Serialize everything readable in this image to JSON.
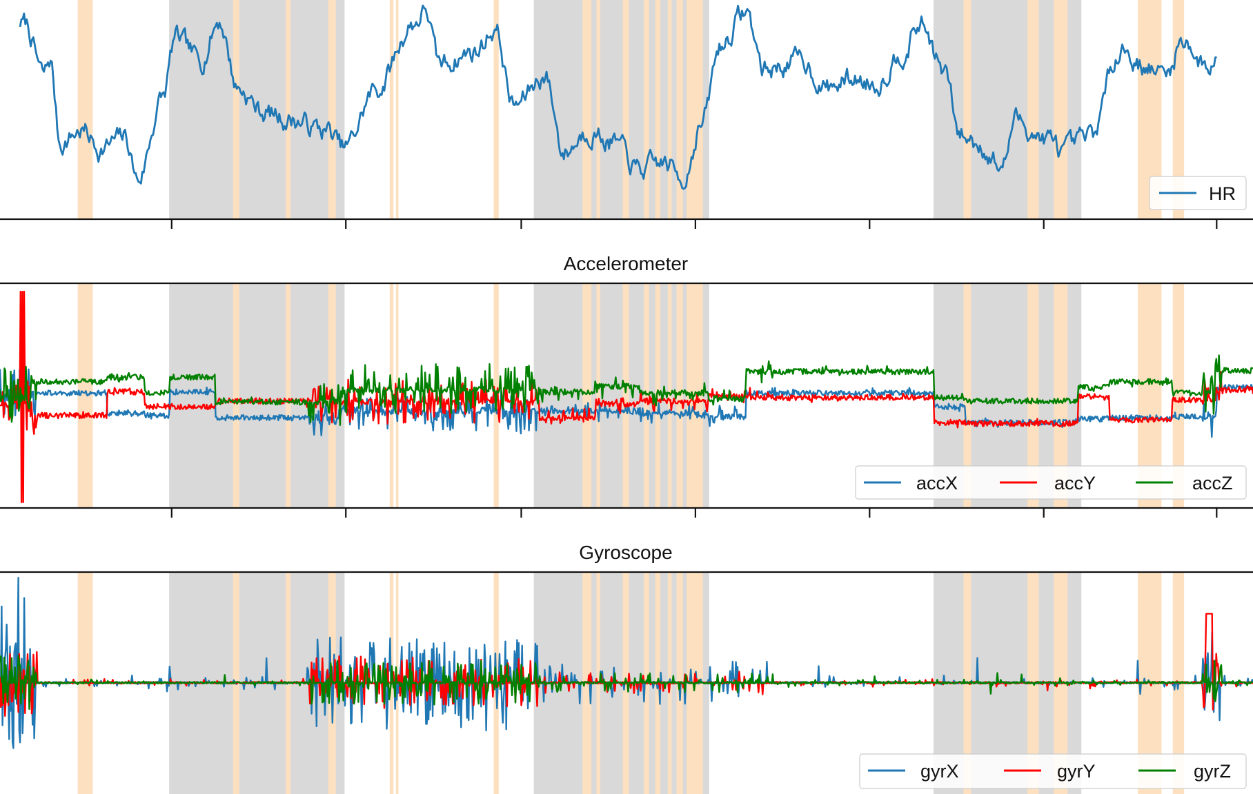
{
  "chart_data": [
    {
      "type": "line",
      "title": "",
      "xlim": [
        0,
        1
      ],
      "ylim": [
        0,
        1
      ],
      "legend": {
        "placement": "lower-right",
        "entries": [
          "HR"
        ]
      },
      "x_ticks": [
        0.137,
        0.276,
        0.416,
        0.555,
        0.694,
        0.833,
        0.971
      ],
      "series": [
        {
          "name": "HR",
          "color": "#1f77b4",
          "style": "hr"
        }
      ]
    },
    {
      "type": "line",
      "title": "Accelerometer",
      "xlim": [
        0,
        1
      ],
      "ylim": [
        -1,
        1
      ],
      "legend": {
        "placement": "lower-right",
        "entries": [
          "accX",
          "accY",
          "accZ"
        ]
      },
      "x_ticks": [
        0.137,
        0.276,
        0.416,
        0.555,
        0.694,
        0.833,
        0.971
      ],
      "series": [
        {
          "name": "accX",
          "color": "#1f77b4",
          "style": "acc",
          "channel": 0
        },
        {
          "name": "accY",
          "color": "#ff0000",
          "style": "acc",
          "channel": 1
        },
        {
          "name": "accZ",
          "color": "#008000",
          "style": "acc",
          "channel": 2
        }
      ]
    },
    {
      "type": "line",
      "title": "Gyroscope",
      "xlim": [
        0,
        1
      ],
      "ylim": [
        -1,
        1
      ],
      "legend": {
        "placement": "lower-right",
        "entries": [
          "gyrX",
          "gyrY",
          "gyrZ"
        ]
      },
      "x_ticks": [
        0.137,
        0.276,
        0.416,
        0.555,
        0.694,
        0.833,
        0.971
      ],
      "series": [
        {
          "name": "gyrX",
          "color": "#1f77b4",
          "style": "gyr",
          "channel": 0
        },
        {
          "name": "gyrY",
          "color": "#ff0000",
          "style": "gyr",
          "channel": 1
        },
        {
          "name": "gyrZ",
          "color": "#008000",
          "style": "gyr",
          "channel": 2
        }
      ]
    }
  ],
  "shaded_regions": {
    "gray_color": "#d9d9d9",
    "orange_color": "#fde0c0",
    "gray": [
      [
        0.135,
        0.275
      ],
      [
        0.426,
        0.566
      ],
      [
        0.745,
        0.863
      ]
    ],
    "orange": [
      [
        0.062,
        0.074
      ],
      [
        0.186,
        0.191
      ],
      [
        0.228,
        0.232
      ],
      [
        0.262,
        0.268
      ],
      [
        0.311,
        0.314
      ],
      [
        0.316,
        0.318
      ],
      [
        0.394,
        0.398
      ],
      [
        0.465,
        0.472
      ],
      [
        0.476,
        0.479
      ],
      [
        0.497,
        0.502
      ],
      [
        0.514,
        0.518
      ],
      [
        0.523,
        0.527
      ],
      [
        0.533,
        0.536
      ],
      [
        0.54,
        0.545
      ],
      [
        0.548,
        0.561
      ],
      [
        0.769,
        0.775
      ],
      [
        0.82,
        0.829
      ],
      [
        0.841,
        0.852
      ],
      [
        0.908,
        0.927
      ],
      [
        0.936,
        0.945
      ]
    ]
  }
}
